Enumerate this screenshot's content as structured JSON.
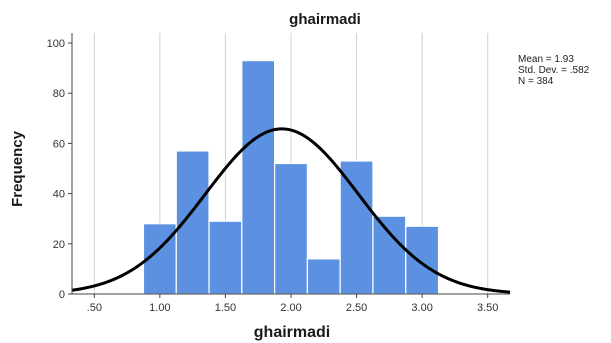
{
  "chart_data": {
    "type": "bar",
    "title": "ghairmadi",
    "xlabel": "ghairmadi",
    "ylabel": "Frequency",
    "bin_width": 0.25,
    "bins": [
      {
        "x_start": 0.875,
        "x_end": 1.125,
        "value": 28
      },
      {
        "x_start": 1.125,
        "x_end": 1.375,
        "value": 57
      },
      {
        "x_start": 1.375,
        "x_end": 1.625,
        "value": 29
      },
      {
        "x_start": 1.625,
        "x_end": 1.875,
        "value": 93
      },
      {
        "x_start": 1.875,
        "x_end": 2.125,
        "value": 52
      },
      {
        "x_start": 2.125,
        "x_end": 2.375,
        "value": 14
      },
      {
        "x_start": 2.375,
        "x_end": 2.625,
        "value": 53
      },
      {
        "x_start": 2.625,
        "x_end": 2.875,
        "value": 31
      },
      {
        "x_start": 2.875,
        "x_end": 3.125,
        "value": 27
      }
    ],
    "xlim": [
      0.33,
      3.67
    ],
    "ylim": [
      0,
      104
    ],
    "x_ticks": [
      {
        "value": 0.5,
        "label": ".50"
      },
      {
        "value": 1.0,
        "label": "1.00"
      },
      {
        "value": 1.5,
        "label": "1.50"
      },
      {
        "value": 2.0,
        "label": "2.00"
      },
      {
        "value": 2.5,
        "label": "2.50"
      },
      {
        "value": 3.0,
        "label": "3.00"
      },
      {
        "value": 3.5,
        "label": "3.50"
      }
    ],
    "y_ticks": [
      {
        "value": 0,
        "label": "0"
      },
      {
        "value": 20,
        "label": "20"
      },
      {
        "value": 40,
        "label": "40"
      },
      {
        "value": 60,
        "label": "60"
      },
      {
        "value": 80,
        "label": "80"
      },
      {
        "value": 100,
        "label": "100"
      }
    ],
    "grid": "vertical",
    "normal_curve": {
      "mean": 1.93,
      "std": 0.582,
      "n": 384
    },
    "stats_lines": [
      "Mean = 1.93",
      "Std. Dev. = .582",
      "N = 384"
    ],
    "legend": "right",
    "colors": {
      "bar": "#5b91e0",
      "bar_edge": "#ffffff",
      "curve": "#000000",
      "grid": "#d0d0d0",
      "axis": "#444444"
    }
  }
}
